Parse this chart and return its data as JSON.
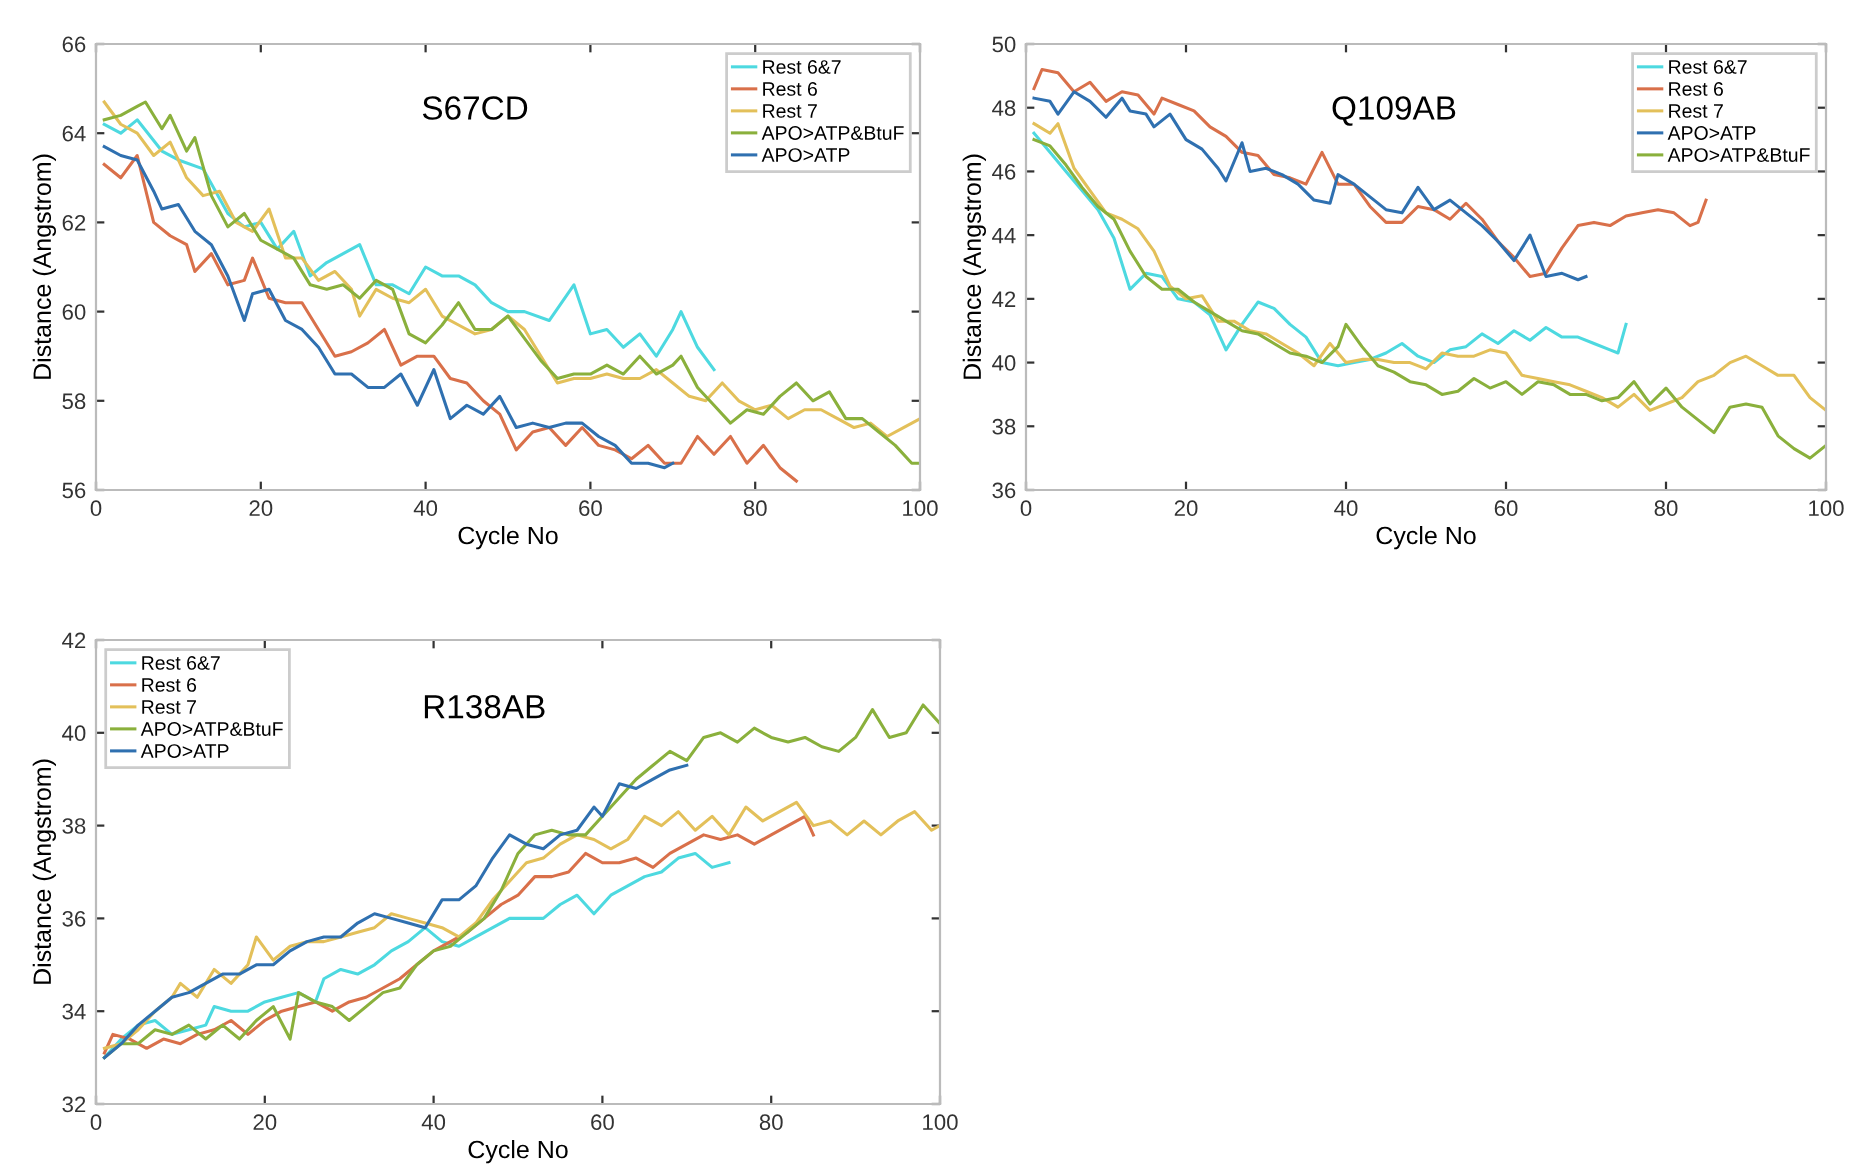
{
  "chart_data": [
    {
      "type": "line",
      "title": "S67CD",
      "xlabel": "Cycle No",
      "ylabel": "Distance (Angstrom)",
      "xlim": [
        0,
        100
      ],
      "ylim": [
        56,
        66
      ],
      "xticks": [
        0,
        20,
        40,
        60,
        80,
        100
      ],
      "yticks": [
        56,
        58,
        60,
        62,
        64,
        66
      ],
      "legend": "top right",
      "grid": false,
      "series": [
        {
          "name": "Rest 6&7",
          "color": "#4dd9e0",
          "x": [
            1,
            3,
            5,
            8,
            10,
            13,
            16,
            18,
            20,
            22,
            24,
            26,
            28,
            30,
            32,
            34,
            36,
            38,
            40,
            42,
            44,
            46,
            48,
            50,
            52,
            55,
            58,
            60,
            62,
            64,
            66,
            68,
            70,
            71,
            73,
            75
          ],
          "values": [
            64.2,
            64.0,
            64.3,
            63.6,
            63.4,
            63.2,
            62.2,
            61.9,
            62.0,
            61.4,
            61.8,
            60.8,
            61.1,
            61.3,
            61.5,
            60.6,
            60.6,
            60.4,
            61.0,
            60.8,
            60.8,
            60.6,
            60.2,
            60.0,
            60.0,
            59.8,
            60.6,
            59.5,
            59.6,
            59.2,
            59.5,
            59.0,
            59.6,
            60.0,
            59.2,
            58.7
          ]
        },
        {
          "name": "Rest 6",
          "color": "#d9704a",
          "x": [
            1,
            3,
            5,
            7,
            9,
            11,
            12,
            14,
            16,
            18,
            19,
            21,
            23,
            25,
            27,
            29,
            31,
            33,
            35,
            37,
            39,
            41,
            43,
            45,
            47,
            49,
            51,
            53,
            55,
            57,
            59,
            61,
            63,
            65,
            67,
            69,
            71,
            73,
            75,
            77,
            79,
            81,
            83,
            85
          ],
          "values": [
            63.3,
            63.0,
            63.5,
            62.0,
            61.7,
            61.5,
            60.9,
            61.3,
            60.6,
            60.7,
            61.2,
            60.3,
            60.2,
            60.2,
            59.6,
            59.0,
            59.1,
            59.3,
            59.6,
            58.8,
            59.0,
            59.0,
            58.5,
            58.4,
            58.0,
            57.7,
            56.9,
            57.3,
            57.4,
            57.0,
            57.4,
            57.0,
            56.9,
            56.7,
            57.0,
            56.6,
            56.6,
            57.2,
            56.8,
            57.2,
            56.6,
            57.0,
            56.5,
            56.2
          ]
        },
        {
          "name": "Rest 7",
          "color": "#e3c05a",
          "x": [
            1,
            3,
            5,
            7,
            9,
            11,
            13,
            15,
            17,
            19,
            21,
            23,
            25,
            27,
            29,
            31,
            32,
            34,
            36,
            38,
            40,
            42,
            44,
            46,
            48,
            50,
            52,
            54,
            56,
            58,
            60,
            62,
            64,
            66,
            68,
            70,
            72,
            74,
            76,
            78,
            80,
            82,
            84,
            86,
            88,
            90,
            92,
            94,
            96,
            98,
            100
          ],
          "values": [
            64.7,
            64.2,
            64.0,
            63.5,
            63.8,
            63.0,
            62.6,
            62.7,
            62.0,
            61.8,
            62.3,
            61.2,
            61.2,
            60.7,
            60.9,
            60.5,
            59.9,
            60.5,
            60.3,
            60.2,
            60.5,
            59.9,
            59.7,
            59.5,
            59.6,
            59.9,
            59.6,
            59.0,
            58.4,
            58.5,
            58.5,
            58.6,
            58.5,
            58.5,
            58.7,
            58.4,
            58.1,
            58.0,
            58.4,
            58.0,
            57.8,
            57.9,
            57.6,
            57.8,
            57.8,
            57.6,
            57.4,
            57.5,
            57.2,
            57.4,
            57.6
          ]
        },
        {
          "name": "APO>ATP&BtuF",
          "color": "#8ab03c",
          "x": [
            1,
            3,
            5,
            6,
            8,
            9,
            11,
            12,
            14,
            16,
            18,
            20,
            22,
            24,
            26,
            28,
            30,
            32,
            34,
            36,
            38,
            40,
            42,
            44,
            46,
            48,
            50,
            52,
            54,
            56,
            58,
            60,
            62,
            64,
            66,
            68,
            70,
            71,
            73,
            75,
            77,
            79,
            81,
            83,
            85,
            87,
            89,
            91,
            93,
            95,
            97,
            99,
            100
          ],
          "values": [
            64.3,
            64.4,
            64.6,
            64.7,
            64.1,
            64.4,
            63.6,
            63.9,
            62.6,
            61.9,
            62.2,
            61.6,
            61.4,
            61.2,
            60.6,
            60.5,
            60.6,
            60.3,
            60.7,
            60.5,
            59.5,
            59.3,
            59.7,
            60.2,
            59.6,
            59.6,
            59.9,
            59.4,
            58.9,
            58.5,
            58.6,
            58.6,
            58.8,
            58.6,
            59.0,
            58.6,
            58.8,
            59.0,
            58.3,
            57.9,
            57.5,
            57.8,
            57.7,
            58.1,
            58.4,
            58.0,
            58.2,
            57.6,
            57.6,
            57.3,
            57.0,
            56.6,
            56.6
          ]
        },
        {
          "name": "APO>ATP",
          "color": "#2f70b0",
          "x": [
            1,
            3,
            5,
            7,
            8,
            10,
            12,
            14,
            16,
            18,
            19,
            21,
            23,
            25,
            27,
            29,
            31,
            33,
            35,
            37,
            39,
            41,
            43,
            45,
            47,
            49,
            51,
            53,
            55,
            57,
            59,
            61,
            63,
            65,
            67,
            69,
            70
          ],
          "values": [
            63.7,
            63.5,
            63.4,
            62.7,
            62.3,
            62.4,
            61.8,
            61.5,
            60.8,
            59.8,
            60.4,
            60.5,
            59.8,
            59.6,
            59.2,
            58.6,
            58.6,
            58.3,
            58.3,
            58.6,
            57.9,
            58.7,
            57.6,
            57.9,
            57.7,
            58.1,
            57.4,
            57.5,
            57.4,
            57.5,
            57.5,
            57.2,
            57.0,
            56.6,
            56.6,
            56.5,
            56.6
          ]
        }
      ]
    },
    {
      "type": "line",
      "title": "Q109AB",
      "xlabel": "Cycle No",
      "ylabel": "Distance (Angstrom)",
      "xlim": [
        0,
        100
      ],
      "ylim": [
        36,
        50
      ],
      "xticks": [
        0,
        20,
        40,
        60,
        80,
        100
      ],
      "yticks": [
        36,
        38,
        40,
        42,
        44,
        46,
        48,
        50
      ],
      "legend": "top right",
      "grid": false,
      "series": [
        {
          "name": "Rest 6&7",
          "color": "#4dd9e0",
          "x": [
            1,
            3,
            5,
            7,
            9,
            11,
            13,
            15,
            17,
            19,
            21,
            23,
            25,
            27,
            29,
            31,
            33,
            35,
            37,
            39,
            41,
            43,
            45,
            47,
            49,
            51,
            53,
            55,
            57,
            59,
            61,
            63,
            65,
            67,
            69,
            71,
            73,
            74,
            75
          ],
          "values": [
            47.2,
            46.6,
            46.0,
            45.4,
            44.8,
            43.9,
            42.3,
            42.8,
            42.7,
            42.0,
            41.9,
            41.5,
            40.4,
            41.2,
            41.9,
            41.7,
            41.2,
            40.8,
            40.0,
            39.9,
            40.0,
            40.1,
            40.3,
            40.6,
            40.2,
            40.0,
            40.4,
            40.5,
            40.9,
            40.6,
            41.0,
            40.7,
            41.1,
            40.8,
            40.8,
            40.6,
            40.4,
            40.3,
            41.2
          ]
        },
        {
          "name": "Rest 6",
          "color": "#d9704a",
          "x": [
            1,
            2,
            4,
            6,
            8,
            10,
            12,
            14,
            16,
            17,
            19,
            21,
            23,
            25,
            27,
            29,
            31,
            33,
            35,
            37,
            39,
            41,
            43,
            45,
            47,
            49,
            51,
            53,
            55,
            57,
            59,
            61,
            63,
            65,
            67,
            69,
            71,
            73,
            75,
            77,
            79,
            81,
            83,
            84,
            85
          ],
          "values": [
            48.6,
            49.2,
            49.1,
            48.5,
            48.8,
            48.2,
            48.5,
            48.4,
            47.8,
            48.3,
            48.1,
            47.9,
            47.4,
            47.1,
            46.6,
            46.5,
            45.9,
            45.8,
            45.6,
            46.6,
            45.6,
            45.6,
            44.9,
            44.4,
            44.4,
            44.9,
            44.8,
            44.5,
            45.0,
            44.5,
            43.8,
            43.3,
            42.7,
            42.8,
            43.6,
            44.3,
            44.4,
            44.3,
            44.6,
            44.7,
            44.8,
            44.7,
            44.3,
            44.4,
            45.1
          ]
        },
        {
          "name": "Rest 7",
          "color": "#e3c05a",
          "x": [
            1,
            3,
            4,
            6,
            8,
            10,
            12,
            14,
            16,
            18,
            20,
            22,
            24,
            26,
            28,
            30,
            32,
            34,
            36,
            38,
            40,
            42,
            44,
            46,
            48,
            50,
            52,
            54,
            56,
            58,
            60,
            62,
            64,
            66,
            68,
            70,
            72,
            74,
            76,
            78,
            80,
            82,
            84,
            86,
            88,
            90,
            92,
            94,
            96,
            98,
            100
          ],
          "values": [
            47.5,
            47.2,
            47.5,
            46.1,
            45.4,
            44.7,
            44.5,
            44.2,
            43.5,
            42.4,
            42.0,
            42.1,
            41.3,
            41.3,
            41.0,
            40.9,
            40.6,
            40.3,
            39.9,
            40.6,
            40.0,
            40.1,
            40.1,
            40.0,
            40.0,
            39.8,
            40.3,
            40.2,
            40.2,
            40.4,
            40.3,
            39.6,
            39.5,
            39.4,
            39.3,
            39.1,
            38.9,
            38.6,
            39.0,
            38.5,
            38.7,
            38.9,
            39.4,
            39.6,
            40.0,
            40.2,
            39.9,
            39.6,
            39.6,
            38.9,
            38.5
          ]
        },
        {
          "name": "APO>ATP",
          "color": "#2f70b0",
          "x": [
            1,
            3,
            4,
            6,
            8,
            10,
            12,
            13,
            15,
            16,
            18,
            20,
            22,
            24,
            25,
            27,
            28,
            30,
            32,
            34,
            36,
            38,
            39,
            41,
            43,
            45,
            47,
            49,
            51,
            53,
            55,
            57,
            59,
            61,
            63,
            65,
            67,
            69,
            70
          ],
          "values": [
            48.3,
            48.2,
            47.8,
            48.5,
            48.2,
            47.7,
            48.3,
            47.9,
            47.8,
            47.4,
            47.8,
            47.0,
            46.7,
            46.1,
            45.7,
            46.9,
            46.0,
            46.1,
            45.9,
            45.6,
            45.1,
            45.0,
            45.9,
            45.6,
            45.2,
            44.8,
            44.7,
            45.5,
            44.8,
            45.1,
            44.7,
            44.3,
            43.8,
            43.2,
            44.0,
            42.7,
            42.8,
            42.6,
            42.7
          ]
        },
        {
          "name": "APO>ATP&BtuF",
          "color": "#8ab03c",
          "x": [
            1,
            3,
            5,
            7,
            9,
            11,
            13,
            15,
            17,
            19,
            21,
            23,
            25,
            27,
            29,
            31,
            33,
            35,
            37,
            39,
            40,
            42,
            44,
            46,
            48,
            50,
            52,
            54,
            56,
            58,
            60,
            62,
            64,
            66,
            68,
            70,
            72,
            74,
            76,
            78,
            80,
            82,
            84,
            86,
            88,
            90,
            92,
            94,
            96,
            98,
            100
          ],
          "values": [
            47.0,
            46.8,
            46.2,
            45.5,
            44.9,
            44.5,
            43.5,
            42.7,
            42.3,
            42.3,
            41.9,
            41.6,
            41.3,
            41.0,
            40.9,
            40.6,
            40.3,
            40.2,
            40.0,
            40.5,
            41.2,
            40.5,
            39.9,
            39.7,
            39.4,
            39.3,
            39.0,
            39.1,
            39.5,
            39.2,
            39.4,
            39.0,
            39.4,
            39.3,
            39.0,
            39.0,
            38.8,
            38.9,
            39.4,
            38.7,
            39.2,
            38.6,
            38.2,
            37.8,
            38.6,
            38.7,
            38.6,
            37.7,
            37.3,
            37.0,
            37.4
          ]
        }
      ]
    },
    {
      "type": "line",
      "title": "R138AB",
      "xlabel": "Cycle No",
      "ylabel": "Distance (Angstrom)",
      "xlim": [
        0,
        100
      ],
      "ylim": [
        32,
        42
      ],
      "xticks": [
        0,
        20,
        40,
        60,
        80,
        100
      ],
      "yticks": [
        32,
        34,
        36,
        38,
        40,
        42
      ],
      "legend": "top left",
      "grid": false,
      "series": [
        {
          "name": "Rest 6&7",
          "color": "#4dd9e0",
          "x": [
            1,
            3,
            5,
            7,
            9,
            11,
            13,
            14,
            16,
            18,
            20,
            22,
            24,
            26,
            27,
            29,
            31,
            33,
            35,
            37,
            39,
            41,
            43,
            45,
            47,
            49,
            51,
            53,
            55,
            57,
            59,
            61,
            63,
            65,
            67,
            69,
            71,
            73,
            75
          ],
          "values": [
            33.0,
            33.4,
            33.7,
            33.8,
            33.5,
            33.6,
            33.7,
            34.1,
            34.0,
            34.0,
            34.2,
            34.3,
            34.4,
            34.2,
            34.7,
            34.9,
            34.8,
            35.0,
            35.3,
            35.5,
            35.8,
            35.5,
            35.4,
            35.6,
            35.8,
            36.0,
            36.0,
            36.0,
            36.3,
            36.5,
            36.1,
            36.5,
            36.7,
            36.9,
            37.0,
            37.3,
            37.4,
            37.1,
            37.2
          ]
        },
        {
          "name": "Rest 6",
          "color": "#d9704a",
          "x": [
            1,
            2,
            4,
            6,
            8,
            10,
            12,
            14,
            16,
            18,
            20,
            22,
            24,
            26,
            28,
            30,
            32,
            34,
            36,
            38,
            40,
            42,
            44,
            46,
            48,
            50,
            52,
            54,
            56,
            58,
            60,
            62,
            64,
            66,
            68,
            70,
            72,
            74,
            76,
            78,
            80,
            82,
            84,
            85
          ],
          "values": [
            33.1,
            33.5,
            33.4,
            33.2,
            33.4,
            33.3,
            33.5,
            33.6,
            33.8,
            33.5,
            33.8,
            34.0,
            34.1,
            34.2,
            34.0,
            34.2,
            34.3,
            34.5,
            34.7,
            35.0,
            35.3,
            35.5,
            35.7,
            36.0,
            36.3,
            36.5,
            36.9,
            36.9,
            37.0,
            37.4,
            37.2,
            37.2,
            37.3,
            37.1,
            37.4,
            37.6,
            37.8,
            37.7,
            37.8,
            37.6,
            37.8,
            38.0,
            38.2,
            37.8
          ]
        },
        {
          "name": "Rest 7",
          "color": "#e3c05a",
          "x": [
            1,
            3,
            5,
            7,
            9,
            10,
            12,
            14,
            16,
            18,
            19,
            21,
            23,
            25,
            27,
            29,
            31,
            33,
            35,
            37,
            39,
            41,
            43,
            45,
            47,
            49,
            51,
            53,
            55,
            57,
            59,
            61,
            63,
            65,
            67,
            69,
            71,
            73,
            75,
            77,
            79,
            81,
            83,
            85,
            87,
            89,
            91,
            93,
            95,
            97,
            99,
            100
          ],
          "values": [
            33.2,
            33.3,
            33.6,
            34.0,
            34.3,
            34.6,
            34.3,
            34.9,
            34.6,
            35.0,
            35.6,
            35.1,
            35.4,
            35.5,
            35.5,
            35.6,
            35.7,
            35.8,
            36.1,
            36.0,
            35.9,
            35.8,
            35.6,
            35.9,
            36.4,
            36.8,
            37.2,
            37.3,
            37.6,
            37.8,
            37.7,
            37.5,
            37.7,
            38.2,
            38.0,
            38.3,
            37.9,
            38.2,
            37.8,
            38.4,
            38.1,
            38.3,
            38.5,
            38.0,
            38.1,
            37.8,
            38.1,
            37.8,
            38.1,
            38.3,
            37.9,
            38.0
          ]
        },
        {
          "name": "APO>ATP&BtuF",
          "color": "#8ab03c",
          "x": [
            1,
            3,
            5,
            7,
            9,
            11,
            13,
            15,
            17,
            19,
            21,
            23,
            24,
            26,
            28,
            30,
            32,
            34,
            36,
            38,
            40,
            42,
            44,
            46,
            48,
            50,
            52,
            54,
            56,
            58,
            60,
            62,
            64,
            66,
            68,
            70,
            72,
            74,
            76,
            78,
            80,
            82,
            84,
            86,
            88,
            90,
            92,
            94,
            96,
            98,
            100
          ],
          "values": [
            33.0,
            33.3,
            33.3,
            33.6,
            33.5,
            33.7,
            33.4,
            33.7,
            33.4,
            33.8,
            34.1,
            33.4,
            34.4,
            34.2,
            34.1,
            33.8,
            34.1,
            34.4,
            34.5,
            35.0,
            35.3,
            35.4,
            35.7,
            36.0,
            36.6,
            37.4,
            37.8,
            37.9,
            37.8,
            37.8,
            38.2,
            38.6,
            39.0,
            39.3,
            39.6,
            39.4,
            39.9,
            40.0,
            39.8,
            40.1,
            39.9,
            39.8,
            39.9,
            39.7,
            39.6,
            39.9,
            40.5,
            39.9,
            40.0,
            40.6,
            40.2
          ]
        },
        {
          "name": "APO>ATP",
          "color": "#2f70b0",
          "x": [
            1,
            3,
            5,
            7,
            9,
            11,
            13,
            15,
            17,
            19,
            21,
            23,
            25,
            27,
            29,
            31,
            33,
            35,
            37,
            39,
            41,
            43,
            45,
            47,
            49,
            51,
            53,
            55,
            57,
            59,
            60,
            62,
            64,
            66,
            68,
            70
          ],
          "values": [
            33.0,
            33.3,
            33.7,
            34.0,
            34.3,
            34.4,
            34.6,
            34.8,
            34.8,
            35.0,
            35.0,
            35.3,
            35.5,
            35.6,
            35.6,
            35.9,
            36.1,
            36.0,
            35.9,
            35.8,
            36.4,
            36.4,
            36.7,
            37.3,
            37.8,
            37.6,
            37.5,
            37.8,
            37.9,
            38.4,
            38.2,
            38.9,
            38.8,
            39.0,
            39.2,
            39.3
          ]
        }
      ]
    }
  ]
}
